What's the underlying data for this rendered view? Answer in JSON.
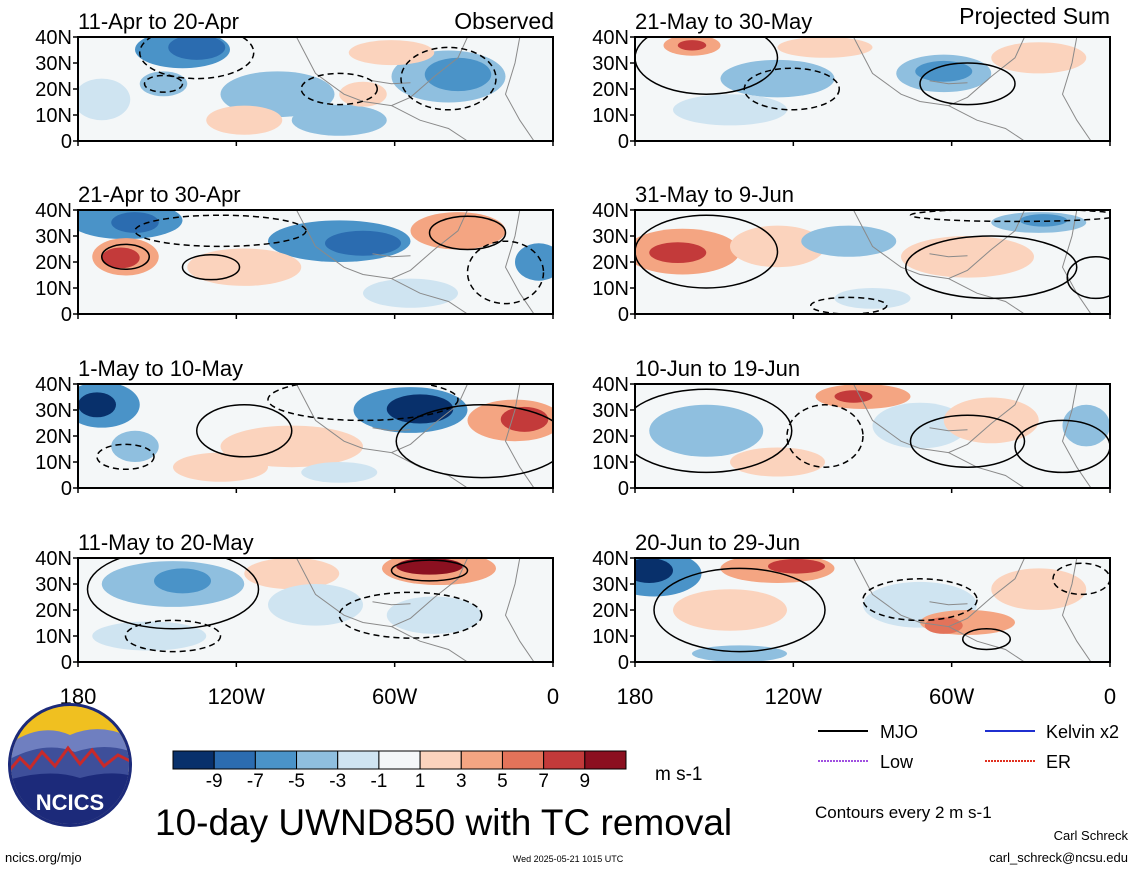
{
  "title": "10-day UWND850 with TC removal",
  "left_column_label": "Observed",
  "right_column_label": "Projected Sum",
  "units": "m s-1",
  "contour_note": "Contours every 2 m s-1",
  "author": "Carl Schreck",
  "email": "carl_schreck@ncsu.edu",
  "website": "ncics.org/mjo",
  "timestamp": "Wed 2025-05-21 1015 UTC",
  "logo_text": "NCICS",
  "colors": {
    "n9": "#08306b",
    "n7": "#2b6cb0",
    "n5": "#4a93c8",
    "n3": "#8fbfdf",
    "n1": "#cfe4f1",
    "zero": "#f4f7f8",
    "p1": "#fbd3bd",
    "p3": "#f4a582",
    "p5": "#e3735a",
    "p7": "#c33a3a",
    "p9": "#8b1020",
    "mjo": "#000000",
    "kelvin": "#1f2fd0",
    "low": "#a050e0",
    "er": "#e03020",
    "land": "#8a8a8a"
  },
  "legend": {
    "mjo": "MJO",
    "kelvin": "Kelvin x2",
    "low": "Low",
    "er": "ER"
  },
  "chart_data": {
    "type": "heatmap",
    "variable": "UWND850",
    "x_ticks": [
      "180",
      "120W",
      "60W",
      "0"
    ],
    "y_ticks": [
      "40N",
      "30N",
      "20N",
      "10N",
      "0"
    ],
    "colorbar_ticks": [
      "-9",
      "-7",
      "-5",
      "-3",
      "-1",
      "1",
      "3",
      "5",
      "7",
      "9"
    ],
    "panels": [
      {
        "label": "11-Apr to 20-Apr",
        "column": "Observed"
      },
      {
        "label": "21-Apr to 30-Apr",
        "column": "Observed"
      },
      {
        "label": "1-May to 10-May",
        "column": "Observed"
      },
      {
        "label": "11-May to 20-May",
        "column": "Observed"
      },
      {
        "label": "21-May to 30-May",
        "column": "Projected Sum"
      },
      {
        "label": "31-May to 9-Jun",
        "column": "Projected Sum"
      },
      {
        "label": "10-Jun to 19-Jun",
        "column": "Projected Sum"
      },
      {
        "label": "20-Jun to 29-Jun",
        "column": "Projected Sum"
      }
    ]
  }
}
